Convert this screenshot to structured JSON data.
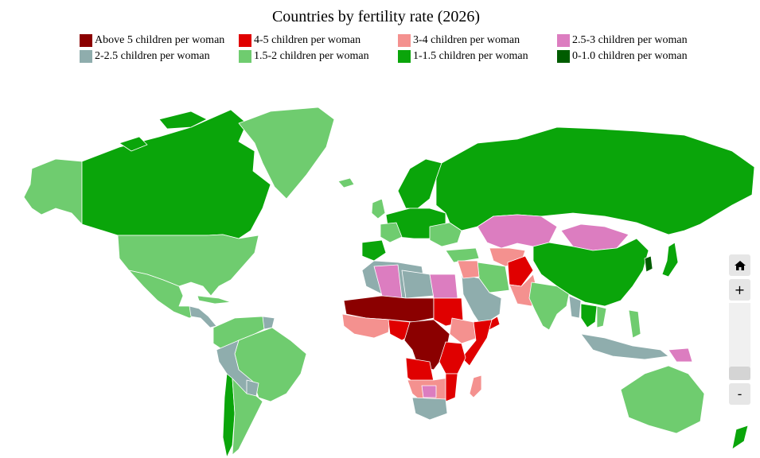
{
  "title": "Countries by fertility rate (2026)",
  "legend": [
    {
      "label": "Above 5 children per woman",
      "color": "#8b0000"
    },
    {
      "label": "4-5 children per woman",
      "color": "#e00000"
    },
    {
      "label": "3-4 children per woman",
      "color": "#f4918f"
    },
    {
      "label": "2.5-3 children per woman",
      "color": "#dc7dc0"
    },
    {
      "label": "2-2.5 children per woman",
      "color": "#8fadad"
    },
    {
      "label": "1.5-2 children per woman",
      "color": "#6fcc6f"
    },
    {
      "label": "1-1.5 children per woman",
      "color": "#0aa50a"
    },
    {
      "label": "0-1.0 children per woman",
      "color": "#005c00"
    }
  ],
  "zoom": {
    "home_icon": "home-icon",
    "zoom_in": "+",
    "zoom_out": "-"
  }
}
